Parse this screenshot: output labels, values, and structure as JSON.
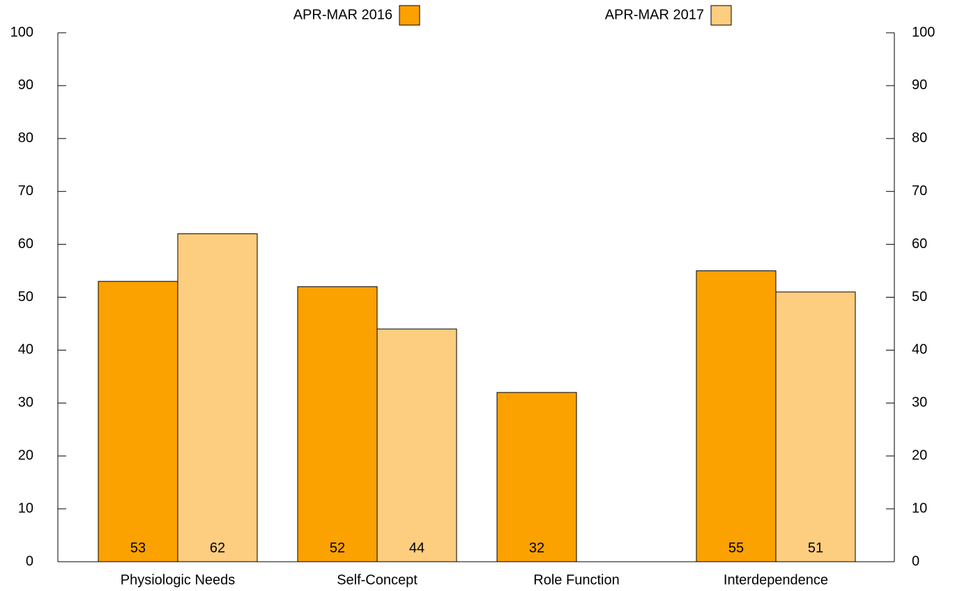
{
  "chart_data": {
    "type": "bar",
    "categories": [
      "Physiologic Needs",
      "Self-Concept",
      "Role Function",
      "Interdependence"
    ],
    "series": [
      {
        "name": "APR-MAR 2016",
        "color": "#fba100",
        "values": [
          53,
          52,
          32,
          55
        ]
      },
      {
        "name": "APR-MAR 2017",
        "color": "#fdcd80",
        "values": [
          62,
          44,
          0,
          51
        ]
      }
    ],
    "ylim": [
      0,
      100
    ],
    "yticks": [
      0,
      10,
      20,
      30,
      40,
      50,
      60,
      70,
      80,
      90,
      100
    ],
    "data_labels": true,
    "legend": "top"
  }
}
